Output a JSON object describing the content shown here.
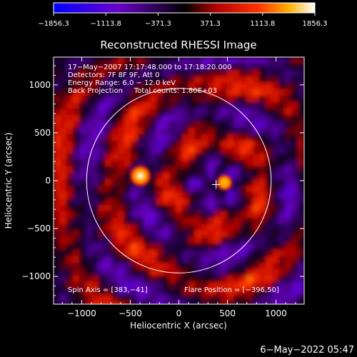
{
  "chart_data": {
    "type": "heatmap",
    "title": "Reconstructed RHESSI Image",
    "xlabel": "Heliocentric X (arcsec)",
    "ylabel": "Heliocentric Y (arcsec)",
    "xlim": [
      -1290,
      1290
    ],
    "ylim": [
      -1290,
      1290
    ],
    "x_ticks": [
      -1000,
      -500,
      0,
      500,
      1000
    ],
    "y_ticks": [
      -1000,
      -500,
      0,
      500,
      1000
    ],
    "colorbar": {
      "range": [
        -1856.3,
        1856.3
      ],
      "tick_values": [
        -1856.3,
        -1113.8,
        -371.3,
        371.3,
        1113.8,
        1856.3
      ],
      "tick_labels": [
        "−1856.3",
        "−1113.8",
        "−371.3",
        "371.3",
        "1113.8",
        "1856.3"
      ]
    },
    "info_lines": [
      "17−May−2007 17:17:48.000 to 17:18:20.000",
      "Detectors: 7F 8F 9F, Att 0",
      "Energy Range: 6.0 − 12.0 keV",
      "Back Projection     Total counts: 1.80E+03"
    ],
    "spin_axis_label": "Spin Axis = [383,−41]",
    "flare_position_label": "Flare Position = [−396,50]",
    "solar_disk": {
      "center": [
        0,
        0
      ],
      "radius": 950
    },
    "spin_axis": [
      383,
      -41
    ],
    "flare_position": [
      -396,
      50
    ],
    "sources": [
      {
        "x": -396,
        "y": 50,
        "value": 1856.3
      },
      {
        "x": 470,
        "y": -20,
        "value": 1250
      }
    ],
    "timestamp": "6−May−2022 05:47"
  }
}
